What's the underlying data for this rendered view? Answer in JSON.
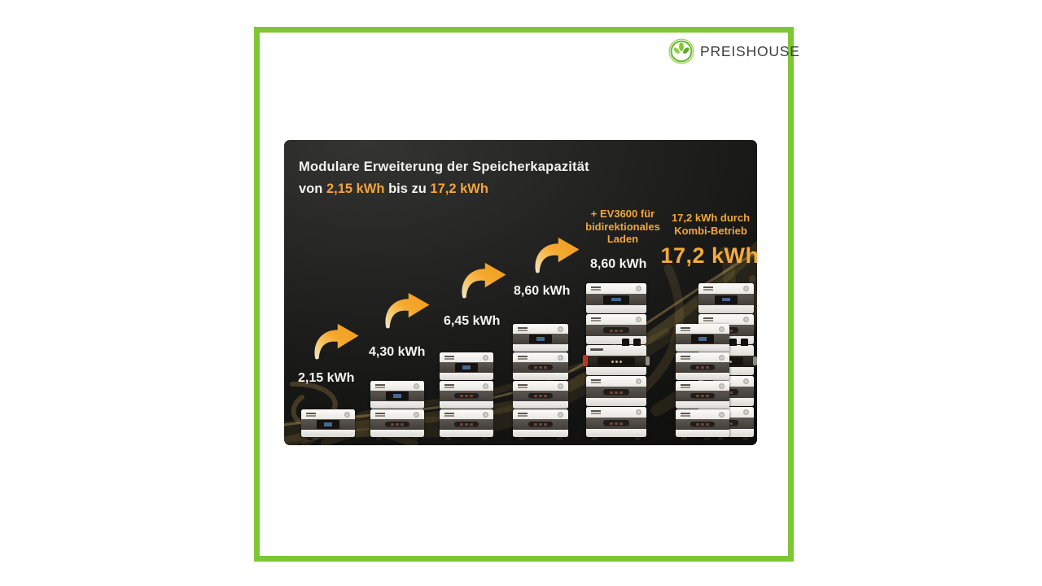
{
  "brand": {
    "name": "PREISHOUSE"
  },
  "frame": {
    "border_color": "#7cc733"
  },
  "infographic": {
    "title": "Modulare Erweiterung der Speicherkapazität",
    "subtitle": {
      "prefix": "von",
      "value_min": "2,15 kWh",
      "middle": "bis zu",
      "value_max": "17,2 kWh"
    },
    "ev_note": [
      "+ EV3600 für",
      "bidirektionales",
      "Laden"
    ],
    "kombi_note": [
      "17,2 kWh durch",
      "Kombi-Betrieb"
    ],
    "kombi_total": "17,2 kWh",
    "accent_color": "#f2a53d",
    "arrow_color": "#f5a82d",
    "stacks": [
      {
        "label": "2,15 kWh",
        "modules": [
          "display"
        ]
      },
      {
        "label": "4,30 kWh",
        "modules": [
          "display",
          "battery"
        ]
      },
      {
        "label": "6,45 kWh",
        "modules": [
          "display",
          "battery",
          "battery"
        ]
      },
      {
        "label": "8,60 kWh",
        "modules": [
          "display",
          "battery",
          "battery",
          "battery"
        ]
      },
      {
        "label": "8,60 kWh",
        "modules": [
          "display",
          "battery",
          "ev",
          "battery",
          "battery"
        ]
      },
      {
        "label": "",
        "modules": [
          "display",
          "battery",
          "ev",
          "battery",
          "battery"
        ]
      },
      {
        "label": "",
        "modules": [
          "display",
          "battery",
          "battery",
          "battery"
        ]
      }
    ]
  }
}
